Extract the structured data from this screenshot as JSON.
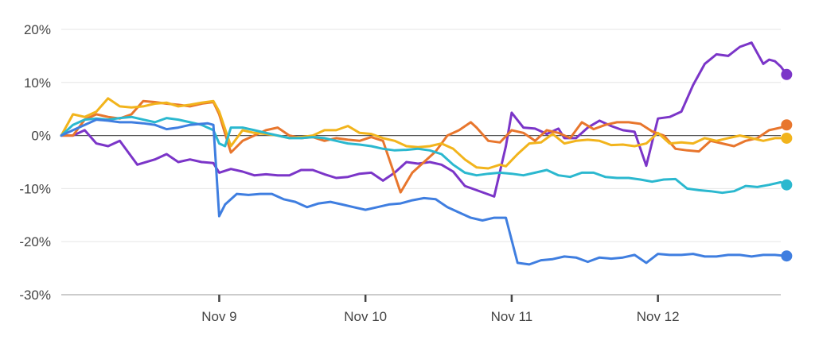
{
  "chart_data": {
    "type": "line",
    "y_unit": "%",
    "ylim": [
      -30,
      20
    ],
    "y_ticks": [
      20,
      10,
      0,
      -10,
      -20,
      -30
    ],
    "y_tick_labels": [
      "20%",
      "10%",
      "0%",
      "-10%",
      "-20%",
      "-30%"
    ],
    "x_ticks": [
      {
        "label": "Nov 9",
        "x": 27
      },
      {
        "label": "Nov 10",
        "x": 52
      },
      {
        "label": "Nov 11",
        "x": 77
      },
      {
        "label": "Nov 12",
        "x": 102
      }
    ],
    "xlim": [
      0,
      123
    ],
    "grid": true,
    "legend": "none",
    "series": [
      {
        "color": "#7b35c8",
        "points": [
          [
            0,
            0
          ],
          [
            2,
            0
          ],
          [
            4,
            1
          ],
          [
            6,
            -1.5
          ],
          [
            8,
            -2
          ],
          [
            10,
            -1
          ],
          [
            13,
            -5.5
          ],
          [
            16,
            -4.5
          ],
          [
            18,
            -3.5
          ],
          [
            20,
            -5
          ],
          [
            22,
            -4.5
          ],
          [
            24,
            -5
          ],
          [
            26,
            -5.2
          ],
          [
            27,
            -7
          ],
          [
            29,
            -6.3
          ],
          [
            31,
            -6.8
          ],
          [
            33,
            -7.5
          ],
          [
            35,
            -7.3
          ],
          [
            37,
            -7.5
          ],
          [
            39,
            -7.5
          ],
          [
            41,
            -6.5
          ],
          [
            43,
            -6.5
          ],
          [
            45,
            -7.3
          ],
          [
            47,
            -8
          ],
          [
            49,
            -7.8
          ],
          [
            51,
            -7.2
          ],
          [
            53,
            -7
          ],
          [
            55,
            -8.5
          ],
          [
            57,
            -7
          ],
          [
            59,
            -5
          ],
          [
            61,
            -5.3
          ],
          [
            63,
            -5
          ],
          [
            65,
            -5.5
          ],
          [
            67,
            -6.8
          ],
          [
            69,
            -9.5
          ],
          [
            71,
            -10.3
          ],
          [
            74,
            -11.5
          ],
          [
            76,
            -2
          ],
          [
            77,
            4.3
          ],
          [
            79,
            1.5
          ],
          [
            81,
            1.3
          ],
          [
            83,
            0.3
          ],
          [
            85,
            1.3
          ],
          [
            86,
            -0.5
          ],
          [
            88,
            -0.5
          ],
          [
            90,
            1.5
          ],
          [
            92,
            2.8
          ],
          [
            94,
            1.8
          ],
          [
            96,
            1
          ],
          [
            98,
            0.7
          ],
          [
            100,
            -5.7
          ],
          [
            102,
            3.2
          ],
          [
            104,
            3.5
          ],
          [
            106,
            4.5
          ],
          [
            108,
            9.5
          ],
          [
            110,
            13.5
          ],
          [
            112,
            15.3
          ],
          [
            114,
            15
          ],
          [
            116,
            16.7
          ],
          [
            118,
            17.5
          ],
          [
            120,
            13.5
          ],
          [
            121,
            14.3
          ],
          [
            122,
            14
          ],
          [
            123,
            13
          ],
          [
            124,
            11.5
          ]
        ]
      },
      {
        "color": "#e8762d",
        "points": [
          [
            0,
            0
          ],
          [
            2,
            0
          ],
          [
            4,
            3
          ],
          [
            6,
            4
          ],
          [
            8,
            3.5
          ],
          [
            10,
            3.2
          ],
          [
            12,
            4
          ],
          [
            14,
            6.5
          ],
          [
            16,
            6.3
          ],
          [
            18,
            6
          ],
          [
            20,
            5.8
          ],
          [
            22,
            5.5
          ],
          [
            24,
            6
          ],
          [
            26,
            6.3
          ],
          [
            27,
            4
          ],
          [
            29,
            -3.2
          ],
          [
            31,
            -1
          ],
          [
            33,
            0
          ],
          [
            35,
            1
          ],
          [
            37,
            1.5
          ],
          [
            39,
            0
          ],
          [
            41,
            -0.5
          ],
          [
            43,
            -0.3
          ],
          [
            45,
            -1
          ],
          [
            47,
            -0.5
          ],
          [
            49,
            -0.8
          ],
          [
            51,
            -1
          ],
          [
            53,
            -0.3
          ],
          [
            55,
            -1
          ],
          [
            58,
            -10.7
          ],
          [
            60,
            -7
          ],
          [
            62,
            -5
          ],
          [
            64,
            -3
          ],
          [
            66,
            0
          ],
          [
            68,
            1
          ],
          [
            70,
            2.5
          ],
          [
            71,
            1.5
          ],
          [
            73,
            -1
          ],
          [
            75,
            -1.3
          ],
          [
            77,
            1
          ],
          [
            79,
            0.5
          ],
          [
            81,
            -1
          ],
          [
            83,
            1
          ],
          [
            85,
            0.5
          ],
          [
            87,
            -0.5
          ],
          [
            89,
            2.5
          ],
          [
            91,
            1.2
          ],
          [
            93,
            2
          ],
          [
            95,
            2.5
          ],
          [
            97,
            2.5
          ],
          [
            99,
            2.2
          ],
          [
            101,
            0.8
          ],
          [
            103,
            0
          ],
          [
            105,
            -2.5
          ],
          [
            107,
            -2.8
          ],
          [
            109,
            -3
          ],
          [
            111,
            -1
          ],
          [
            113,
            -1.5
          ],
          [
            115,
            -2
          ],
          [
            117,
            -1
          ],
          [
            119,
            -0.5
          ],
          [
            121,
            1
          ],
          [
            123,
            1.5
          ],
          [
            124,
            2
          ]
        ]
      },
      {
        "color": "#f2b41c",
        "points": [
          [
            0,
            0
          ],
          [
            2,
            4
          ],
          [
            4,
            3.5
          ],
          [
            6,
            4.5
          ],
          [
            8,
            7
          ],
          [
            10,
            5.5
          ],
          [
            12,
            5.3
          ],
          [
            14,
            5.5
          ],
          [
            16,
            6
          ],
          [
            18,
            6.2
          ],
          [
            20,
            5.5
          ],
          [
            22,
            5.8
          ],
          [
            24,
            6.2
          ],
          [
            26,
            6.5
          ],
          [
            27,
            4.5
          ],
          [
            29,
            -2
          ],
          [
            31,
            1
          ],
          [
            33,
            0.5
          ],
          [
            35,
            0.3
          ],
          [
            37,
            0
          ],
          [
            39,
            -0.5
          ],
          [
            41,
            -0.3
          ],
          [
            43,
            0
          ],
          [
            45,
            1
          ],
          [
            47,
            1
          ],
          [
            49,
            1.8
          ],
          [
            51,
            0.5
          ],
          [
            53,
            0.3
          ],
          [
            55,
            -0.5
          ],
          [
            57,
            -1
          ],
          [
            59,
            -2
          ],
          [
            61,
            -2.2
          ],
          [
            63,
            -2
          ],
          [
            65,
            -1.5
          ],
          [
            67,
            -2.5
          ],
          [
            69,
            -4.5
          ],
          [
            71,
            -6
          ],
          [
            73,
            -6.2
          ],
          [
            75,
            -5.5
          ],
          [
            76,
            -5.8
          ],
          [
            78,
            -3.5
          ],
          [
            80,
            -1.5
          ],
          [
            82,
            -1.3
          ],
          [
            84,
            0.3
          ],
          [
            86,
            -1.5
          ],
          [
            88,
            -1
          ],
          [
            90,
            -0.8
          ],
          [
            92,
            -1
          ],
          [
            94,
            -1.8
          ],
          [
            96,
            -1.7
          ],
          [
            98,
            -2
          ],
          [
            100,
            -1.5
          ],
          [
            102,
            0.5
          ],
          [
            104,
            -1.5
          ],
          [
            106,
            -1.3
          ],
          [
            108,
            -1.5
          ],
          [
            110,
            -0.5
          ],
          [
            112,
            -1
          ],
          [
            114,
            -0.5
          ],
          [
            116,
            0
          ],
          [
            118,
            -0.5
          ],
          [
            120,
            -1
          ],
          [
            122,
            -0.5
          ],
          [
            124,
            -0.5
          ]
        ]
      },
      {
        "color": "#2bb8cf",
        "points": [
          [
            0,
            0
          ],
          [
            2,
            2
          ],
          [
            4,
            3
          ],
          [
            6,
            3.2
          ],
          [
            8,
            3
          ],
          [
            10,
            3.3
          ],
          [
            12,
            3.5
          ],
          [
            14,
            3
          ],
          [
            16,
            2.5
          ],
          [
            18,
            3.3
          ],
          [
            20,
            3
          ],
          [
            22,
            2.5
          ],
          [
            24,
            2
          ],
          [
            26,
            1
          ],
          [
            27,
            -1.5
          ],
          [
            28,
            -2
          ],
          [
            29,
            1.5
          ],
          [
            31,
            1.5
          ],
          [
            33,
            1
          ],
          [
            35,
            0.5
          ],
          [
            37,
            0
          ],
          [
            39,
            -0.5
          ],
          [
            41,
            -0.5
          ],
          [
            43,
            -0.3
          ],
          [
            45,
            -0.5
          ],
          [
            47,
            -1
          ],
          [
            49,
            -1.5
          ],
          [
            51,
            -1.7
          ],
          [
            53,
            -2
          ],
          [
            55,
            -2.5
          ],
          [
            57,
            -2.8
          ],
          [
            59,
            -2.7
          ],
          [
            61,
            -2.5
          ],
          [
            63,
            -2.8
          ],
          [
            65,
            -3.5
          ],
          [
            67,
            -5.5
          ],
          [
            69,
            -7
          ],
          [
            71,
            -7.5
          ],
          [
            73,
            -7.2
          ],
          [
            75,
            -7
          ],
          [
            77,
            -7.2
          ],
          [
            79,
            -7.5
          ],
          [
            81,
            -7
          ],
          [
            83,
            -6.5
          ],
          [
            85,
            -7.5
          ],
          [
            87,
            -7.8
          ],
          [
            89,
            -7
          ],
          [
            91,
            -7
          ],
          [
            93,
            -7.8
          ],
          [
            95,
            -8
          ],
          [
            97,
            -8
          ],
          [
            99,
            -8.3
          ],
          [
            101,
            -8.7
          ],
          [
            103,
            -8.3
          ],
          [
            105,
            -8.2
          ],
          [
            107,
            -10
          ],
          [
            109,
            -10.3
          ],
          [
            111,
            -10.5
          ],
          [
            113,
            -10.8
          ],
          [
            115,
            -10.5
          ],
          [
            117,
            -9.5
          ],
          [
            119,
            -9.7
          ],
          [
            121,
            -9.3
          ],
          [
            123,
            -8.8
          ],
          [
            124,
            -9.3
          ]
        ]
      },
      {
        "color": "#3f7ee0",
        "points": [
          [
            0,
            0
          ],
          [
            2,
            1
          ],
          [
            4,
            2
          ],
          [
            6,
            3
          ],
          [
            8,
            2.8
          ],
          [
            10,
            2.5
          ],
          [
            12,
            2.5
          ],
          [
            14,
            2.3
          ],
          [
            16,
            2
          ],
          [
            18,
            1.2
          ],
          [
            20,
            1.5
          ],
          [
            22,
            2
          ],
          [
            24,
            2.2
          ],
          [
            25,
            2.3
          ],
          [
            26,
            2
          ],
          [
            27,
            -15.2
          ],
          [
            28,
            -13
          ],
          [
            30,
            -11
          ],
          [
            32,
            -11.2
          ],
          [
            34,
            -11
          ],
          [
            36,
            -11
          ],
          [
            38,
            -12
          ],
          [
            40,
            -12.5
          ],
          [
            42,
            -13.5
          ],
          [
            44,
            -12.8
          ],
          [
            46,
            -12.5
          ],
          [
            48,
            -13
          ],
          [
            50,
            -13.5
          ],
          [
            52,
            -14
          ],
          [
            54,
            -13.5
          ],
          [
            56,
            -13
          ],
          [
            58,
            -12.8
          ],
          [
            60,
            -12.2
          ],
          [
            62,
            -11.8
          ],
          [
            64,
            -12
          ],
          [
            66,
            -13.5
          ],
          [
            68,
            -14.5
          ],
          [
            70,
            -15.5
          ],
          [
            72,
            -16
          ],
          [
            74,
            -15.5
          ],
          [
            76,
            -15.5
          ],
          [
            78,
            -24
          ],
          [
            80,
            -24.3
          ],
          [
            82,
            -23.5
          ],
          [
            84,
            -23.3
          ],
          [
            86,
            -22.8
          ],
          [
            88,
            -23
          ],
          [
            90,
            -23.8
          ],
          [
            92,
            -23
          ],
          [
            94,
            -23.2
          ],
          [
            96,
            -23
          ],
          [
            98,
            -22.5
          ],
          [
            100,
            -24
          ],
          [
            102,
            -22.3
          ],
          [
            104,
            -22.5
          ],
          [
            106,
            -22.5
          ],
          [
            108,
            -22.3
          ],
          [
            110,
            -22.8
          ],
          [
            112,
            -22.8
          ],
          [
            114,
            -22.5
          ],
          [
            116,
            -22.5
          ],
          [
            118,
            -22.8
          ],
          [
            120,
            -22.5
          ],
          [
            122,
            -22.5
          ],
          [
            124,
            -22.7
          ]
        ]
      }
    ]
  }
}
